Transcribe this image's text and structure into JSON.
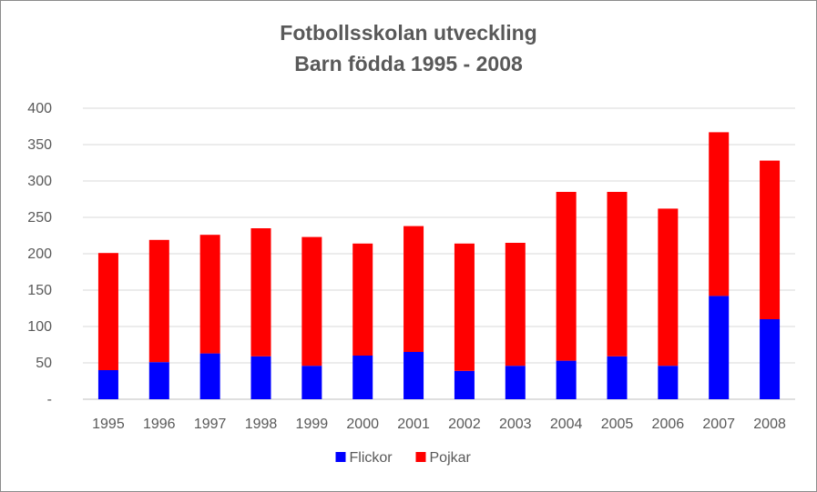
{
  "chart_data": {
    "type": "bar",
    "stacked": true,
    "title": "Fotbollsskolan utveckling",
    "subtitle": "Barn födda 1995 - 2008",
    "xlabel": "",
    "ylabel": "",
    "ylim": [
      0,
      400
    ],
    "y_ticks": [
      "-",
      "50",
      "100",
      "150",
      "200",
      "250",
      "300",
      "350",
      "400"
    ],
    "y_tick_values": [
      0,
      50,
      100,
      150,
      200,
      250,
      300,
      350,
      400
    ],
    "grid": true,
    "legend_position": "bottom",
    "categories": [
      "1995",
      "1996",
      "1997",
      "1998",
      "1999",
      "2000",
      "2001",
      "2002",
      "2003",
      "2004",
      "2005",
      "2006",
      "2007",
      "2008"
    ],
    "series": [
      {
        "name": "Flickor",
        "color": "#0000ff",
        "values": [
          40,
          51,
          63,
          59,
          46,
          60,
          65,
          39,
          46,
          53,
          59,
          46,
          142,
          110
        ]
      },
      {
        "name": "Pojkar",
        "color": "#ff0000",
        "values": [
          161,
          168,
          163,
          176,
          177,
          154,
          173,
          175,
          169,
          232,
          226,
          216,
          225,
          218
        ]
      }
    ]
  }
}
